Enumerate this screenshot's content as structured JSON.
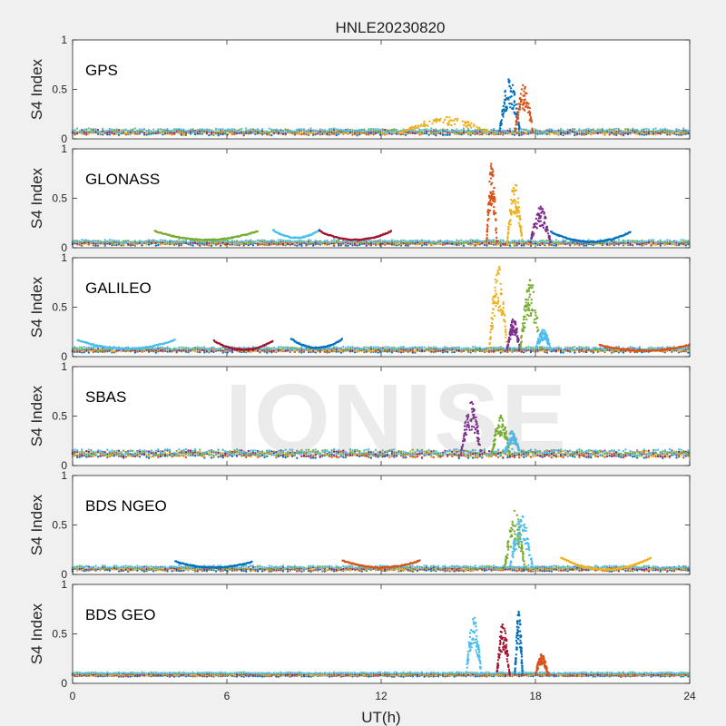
{
  "figure": {
    "title": "HNLE20230820",
    "watermark": "IONISE"
  },
  "chart_data": {
    "type": "scatter",
    "title": "HNLE20230820",
    "xlabel": "UT(h)",
    "ylabel": "S4 Index",
    "xlim": [
      0,
      24
    ],
    "ylim": [
      0,
      1
    ],
    "xticks": [
      0,
      6,
      12,
      18,
      24
    ],
    "yticks": [
      0,
      0.5,
      1
    ],
    "grid": false,
    "colors": [
      "#0072BD",
      "#D95319",
      "#EDB120",
      "#7E2F8E",
      "#77AC30",
      "#4DBEEE",
      "#A2142F"
    ],
    "panels": [
      {
        "label": "GPS",
        "baseline": 0.07,
        "noise": 0.02,
        "events": [
          {
            "x": [
              16.6,
              17.4
            ],
            "peak": 0.62
          },
          {
            "x": [
              17.2,
              17.9
            ],
            "peak": 0.55
          },
          {
            "x": [
              12.8,
              16.2
            ],
            "peak": 0.22
          }
        ]
      },
      {
        "label": "GLONASS",
        "baseline": 0.05,
        "noise": 0.015,
        "events": [
          {
            "x": [
              16.1,
              16.5
            ],
            "peak": 0.88
          },
          {
            "x": [
              16.9,
              17.5
            ],
            "peak": 0.68
          },
          {
            "x": [
              17.8,
              18.6
            ],
            "peak": 0.42
          }
        ],
        "arcs": [
          {
            "x": [
              3.2,
              7.2
            ],
            "mid": 0.08,
            "end": 0.17
          },
          {
            "x": [
              7.8,
              9.6
            ],
            "mid": 0.1,
            "end": 0.18
          },
          {
            "x": [
              9.6,
              12.4
            ],
            "mid": 0.08,
            "end": 0.17
          },
          {
            "x": [
              18.6,
              21.7
            ],
            "mid": 0.06,
            "end": 0.16
          }
        ]
      },
      {
        "label": "GALILEO",
        "baseline": 0.07,
        "noise": 0.015,
        "events": [
          {
            "x": [
              16.2,
              16.9
            ],
            "peak": 0.95
          },
          {
            "x": [
              16.9,
              17.4
            ],
            "peak": 0.4
          },
          {
            "x": [
              17.4,
              18.2
            ],
            "peak": 0.78
          },
          {
            "x": [
              18.0,
              18.6
            ],
            "peak": 0.28
          }
        ],
        "arcs": [
          {
            "x": [
              0.2,
              4.0
            ],
            "mid": 0.08,
            "end": 0.17
          },
          {
            "x": [
              5.5,
              7.8
            ],
            "mid": 0.07,
            "end": 0.16
          },
          {
            "x": [
              8.5,
              10.5
            ],
            "mid": 0.09,
            "end": 0.18
          },
          {
            "x": [
              20.5,
              24.0
            ],
            "mid": 0.06,
            "end": 0.12
          }
        ]
      },
      {
        "label": "SBAS",
        "baseline": 0.12,
        "noise": 0.03,
        "events": [
          {
            "x": [
              15.1,
              15.9
            ],
            "peak": 0.65
          },
          {
            "x": [
              16.3,
              17.0
            ],
            "peak": 0.52
          },
          {
            "x": [
              16.8,
              17.4
            ],
            "peak": 0.35
          }
        ]
      },
      {
        "label": "BDS NGEO",
        "baseline": 0.06,
        "noise": 0.015,
        "events": [
          {
            "x": [
              16.8,
              17.6
            ],
            "peak": 0.65
          },
          {
            "x": [
              17.0,
              17.9
            ],
            "peak": 0.6
          }
        ],
        "arcs": [
          {
            "x": [
              4.0,
              7.0
            ],
            "mid": 0.07,
            "end": 0.13
          },
          {
            "x": [
              10.5,
              13.5
            ],
            "mid": 0.07,
            "end": 0.14
          },
          {
            "x": [
              19.0,
              22.5
            ],
            "mid": 0.05,
            "end": 0.17
          }
        ]
      },
      {
        "label": "BDS GEO",
        "baseline": 0.09,
        "noise": 0.008,
        "events": [
          {
            "x": [
              15.3,
              15.9
            ],
            "peak": 0.68
          },
          {
            "x": [
              16.5,
              17.0
            ],
            "peak": 0.63
          },
          {
            "x": [
              17.2,
              17.5
            ],
            "peak": 0.76
          },
          {
            "x": [
              18.0,
              18.5
            ],
            "peak": 0.3
          }
        ]
      }
    ]
  }
}
